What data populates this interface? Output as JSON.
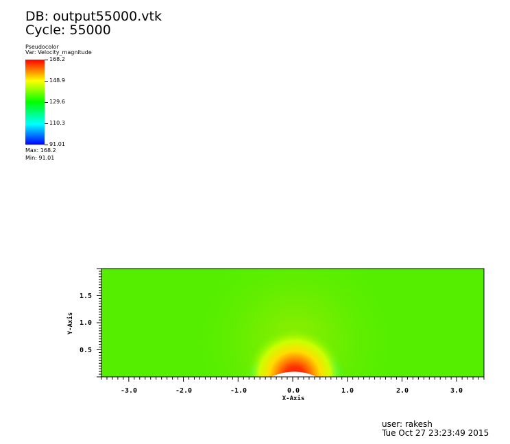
{
  "header": {
    "db": "DB: output55000.vtk",
    "cycle": "Cycle: 55000"
  },
  "legend": {
    "plot_type": "Pseudocolor",
    "variable": "Var: Velocity_magnitude",
    "ticks": [
      "168.2",
      "148.9",
      "129.6",
      "110.3",
      "91.01"
    ],
    "max": "Max:  168.2",
    "min": "Min:  91.01"
  },
  "plot": {
    "x_axis_title": "X-Axis",
    "y_axis_title": "Y-Axis",
    "x_ticks": [
      "-3.0",
      "-2.0",
      "-1.0",
      "0.0",
      "1.0",
      "2.0",
      "3.0"
    ],
    "y_ticks": [
      "0.5",
      "1.0",
      "1.5"
    ],
    "x_range": [
      -3.5,
      3.5
    ],
    "y_range": [
      0,
      2.0
    ],
    "field_colors": {
      "background": "#55ee00",
      "high": "#ff2200",
      "low": "#0066ff"
    }
  },
  "footer": {
    "user": "user: rakesh",
    "date": "Tue Oct 27 23:23:49 2015"
  }
}
